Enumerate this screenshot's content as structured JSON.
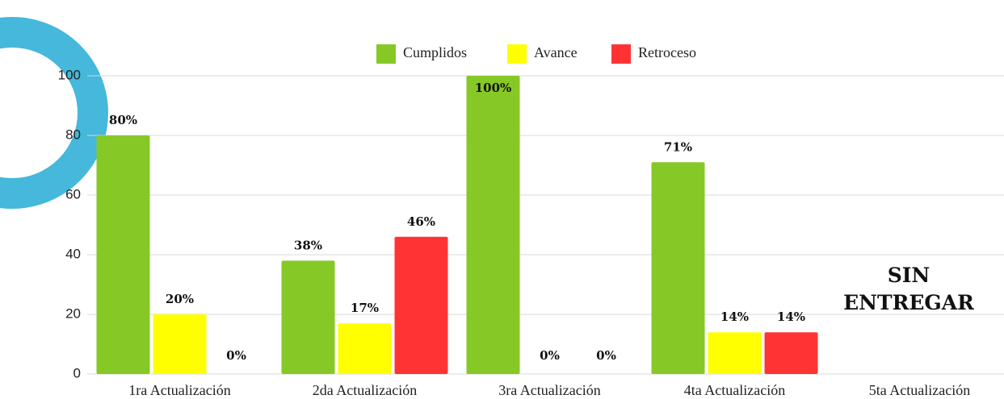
{
  "chart_data": {
    "type": "bar",
    "categories": [
      "1ra Actualización",
      "2da Actualización",
      "3ra Actualización",
      "4ta Actualización",
      "5ta Actualización"
    ],
    "series": [
      {
        "name": "Cumplidos",
        "color": "#86c926",
        "values": [
          80,
          38,
          100,
          71,
          null
        ],
        "value_labels": [
          "80%",
          "38%",
          "100%",
          "71%",
          null
        ]
      },
      {
        "name": "Avance",
        "color": "#ffff00",
        "values": [
          20,
          17,
          0,
          14,
          null
        ],
        "value_labels": [
          "20%",
          "17%",
          "0%",
          "14%",
          null
        ]
      },
      {
        "name": "Retroceso",
        "color": "#ff3333",
        "values": [
          0,
          46,
          0,
          14,
          null
        ],
        "value_labels": [
          "0%",
          "46%",
          "0%",
          "14%",
          null
        ]
      }
    ],
    "ylim": [
      0,
      100
    ],
    "yticks": [
      0,
      20,
      40,
      60,
      80,
      100
    ],
    "grid": true,
    "legend": "top",
    "annotation": "SIN ENTREGAR"
  }
}
